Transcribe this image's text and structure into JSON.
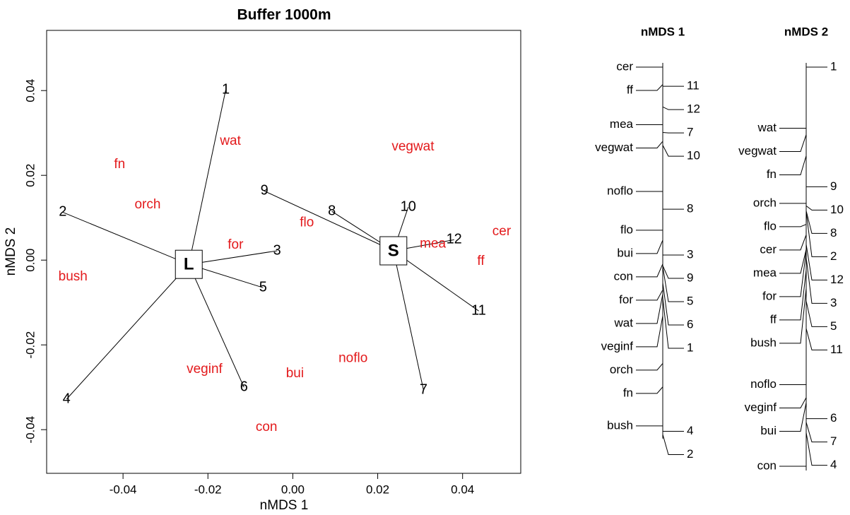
{
  "chart_data": [
    {
      "type": "scatter",
      "title": "Buffer 1000m",
      "x_label": "nMDS 1",
      "y_label": "nMDS 2",
      "xlim": [
        -0.058,
        0.0537
      ],
      "ylim": [
        -0.0503,
        0.0542
      ],
      "xticks": [
        -0.04,
        -0.02,
        {
          "value": 0,
          "label": "0.00"
        },
        0.02,
        0.04
      ],
      "yticks": [
        -0.04,
        -0.02,
        {
          "value": 0,
          "label": "0.00"
        },
        0.02,
        0.04
      ],
      "sites": {
        "color": "#000000",
        "labels": [
          "1",
          "2",
          "3",
          "4",
          "5",
          "6",
          "7",
          "8",
          "9",
          "10",
          "11",
          "12"
        ],
        "x": [
          -0.0158,
          -0.0542,
          -0.0037,
          -0.0533,
          -0.007,
          -0.0115,
          0.0308,
          0.0092,
          -0.0067,
          0.0272,
          0.0438,
          0.038
        ],
        "y": [
          0.0402,
          0.0113,
          0.0022,
          -0.0328,
          -0.0065,
          -0.03,
          -0.0307,
          0.0115,
          0.0163,
          0.0125,
          -0.012,
          0.0048
        ],
        "group": [
          "L",
          "L",
          "L",
          "L",
          "L",
          "L",
          "S",
          "S",
          "S",
          "S",
          "S",
          "S"
        ]
      },
      "species": {
        "color": "#e31a1c",
        "labels": [
          "wat",
          "fn",
          "orch",
          "for",
          "bush",
          "veginf",
          "bui",
          "noflo",
          "con",
          "vegwat",
          "flo",
          "mea",
          "ff",
          "cer"
        ],
        "x": [
          -0.0147,
          -0.0408,
          -0.0342,
          -0.0135,
          -0.0518,
          -0.0208,
          0.0005,
          0.0142,
          -0.0062,
          0.0283,
          0.0033,
          0.033,
          0.0443,
          0.0492
        ],
        "y": [
          0.028,
          0.0225,
          0.013,
          0.0035,
          -0.004,
          -0.0258,
          -0.0268,
          -0.0232,
          -0.0395,
          0.0267,
          0.0088,
          0.0038,
          -0.0003,
          0.0067
        ]
      },
      "centroids": {
        "labels": [
          "L",
          "S"
        ],
        "x": [
          -0.0245,
          0.0237
        ],
        "y": [
          -0.001,
          0.0022
        ]
      }
    },
    {
      "type": "strip",
      "title": "nMDS 1",
      "species": {
        "labels": [
          "cer",
          "ff",
          "mea",
          "vegwat",
          "noflo",
          "flo",
          "bui",
          "con",
          "for",
          "wat",
          "veginf",
          "orch",
          "fn",
          "bush"
        ],
        "values": [
          0.0492,
          0.0443,
          0.033,
          0.0283,
          0.0142,
          0.0033,
          0.0005,
          -0.0062,
          -0.0135,
          -0.0147,
          -0.0208,
          -0.0342,
          -0.0408,
          -0.0518
        ]
      },
      "sites": {
        "labels": [
          "11",
          "12",
          "7",
          "10",
          "8",
          "3",
          "9",
          "5",
          "6",
          "1",
          "4",
          "2"
        ],
        "values": [
          0.0438,
          0.038,
          0.0308,
          0.0272,
          0.0092,
          -0.0037,
          -0.0067,
          -0.007,
          -0.0115,
          -0.0158,
          -0.0533,
          -0.0542
        ]
      }
    },
    {
      "type": "strip",
      "title": "nMDS 2",
      "species": {
        "labels": [
          "wat",
          "vegwat",
          "fn",
          "orch",
          "flo",
          "cer",
          "mea",
          "for",
          "ff",
          "bush",
          "noflo",
          "veginf",
          "bui",
          "con"
        ],
        "values": [
          0.028,
          0.0267,
          0.0225,
          0.013,
          0.0088,
          0.0067,
          0.0038,
          0.0035,
          -0.0003,
          -0.004,
          -0.0232,
          -0.0258,
          -0.0268,
          -0.0395
        ]
      },
      "sites": {
        "labels": [
          "1",
          "9",
          "10",
          "8",
          "2",
          "12",
          "3",
          "5",
          "11",
          "6",
          "7",
          "4"
        ],
        "values": [
          0.0402,
          0.0163,
          0.0125,
          0.0115,
          0.0113,
          0.0048,
          0.0022,
          -0.0065,
          -0.012,
          -0.03,
          -0.0307,
          -0.0328
        ]
      }
    }
  ]
}
